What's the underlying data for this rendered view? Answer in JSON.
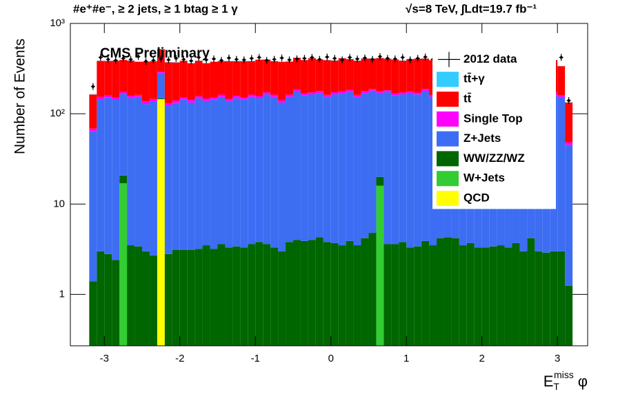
{
  "chart_data": {
    "type": "stacked_histogram",
    "title": "#e⁺#e⁻, ≥ 2 jets, ≥ 1 btag ≥ 1 γ",
    "subtitle": "√s=8 TeV,  ∫Ldt=19.7 fb⁻¹",
    "annotation": "CMS Preliminary",
    "y_label": "Number of Events",
    "x_label": {
      "base": "E",
      "sub": "T",
      "sup": "miss",
      "suffix": "φ"
    },
    "log_y": true,
    "xlim": [
      -3.45,
      3.4
    ],
    "ylim": [
      0.27,
      1000
    ],
    "xticks": [
      -3,
      -2,
      -1,
      0,
      1,
      2,
      3
    ],
    "yticks": [
      1,
      10,
      {
        "value": 100,
        "label": "10²"
      },
      {
        "value": 1000,
        "label": "10³"
      }
    ],
    "legend": "upper right",
    "bins": [
      -3.2,
      -3.1,
      -3.0,
      -2.9,
      -2.8,
      -2.7,
      -2.6,
      -2.5,
      -2.4,
      -2.3,
      -2.2,
      -2.1,
      -2.0,
      -1.9,
      -1.8,
      -1.7,
      -1.6,
      -1.5,
      -1.4,
      -1.3,
      -1.2,
      -1.1,
      -1.0,
      -0.9,
      -0.8,
      -0.7,
      -0.6,
      -0.5,
      -0.4,
      -0.3,
      -0.2,
      -0.1,
      0.0,
      0.1,
      0.2,
      0.3,
      0.4,
      0.5,
      0.6,
      0.7,
      0.8,
      0.9,
      1.0,
      1.1,
      1.2,
      1.3,
      1.4,
      1.5,
      1.6,
      1.7,
      1.8,
      1.9,
      2.0,
      2.1,
      2.2,
      2.3,
      2.4,
      2.5,
      2.6,
      2.7,
      2.8,
      2.9,
      3.0,
      3.1,
      3.2
    ],
    "data_series": {
      "name": "2012 data",
      "color": "#000000",
      "values": [
        200,
        420,
        400,
        390,
        410,
        400,
        430,
        380,
        390,
        405,
        395,
        410,
        400,
        385,
        420,
        395,
        405,
        390,
        415,
        400,
        395,
        410,
        420,
        390,
        400,
        415,
        395,
        405,
        410,
        420,
        400,
        425,
        410,
        395,
        420,
        405,
        415,
        400,
        430,
        410,
        405,
        420,
        395,
        410,
        425,
        400,
        415,
        405,
        410,
        400,
        420,
        395,
        415,
        405,
        400,
        420,
        410,
        395,
        405,
        400,
        410,
        400,
        420,
        140
      ]
    },
    "series": [
      {
        "name": "tt̄+γ",
        "color": "#33ccff",
        "values": [
          1,
          2,
          2,
          2,
          2,
          2,
          2,
          2,
          2,
          2,
          2,
          2,
          2,
          2,
          2,
          2,
          2,
          2,
          2,
          2,
          2,
          2,
          2,
          2,
          2,
          2,
          2,
          2,
          2,
          2,
          2,
          2,
          2,
          2,
          2,
          2,
          2,
          2,
          2,
          2,
          2,
          2,
          2,
          2,
          2,
          2,
          2,
          2,
          2,
          2,
          2,
          2,
          2,
          2,
          2,
          2,
          2,
          2,
          2,
          2,
          2,
          2,
          2,
          1
        ]
      },
      {
        "name": "tt̄",
        "color": "#ff0000",
        "values": [
          95,
          230,
          225,
          235,
          220,
          230,
          215,
          240,
          235,
          225,
          240,
          230,
          235,
          220,
          230,
          215,
          225,
          220,
          235,
          225,
          230,
          220,
          240,
          225,
          220,
          235,
          215,
          230,
          225,
          240,
          220,
          230,
          215,
          235,
          220,
          225,
          230,
          220,
          235,
          225,
          230,
          215,
          225,
          235,
          220,
          230,
          225,
          240,
          220,
          225,
          235,
          215,
          230,
          225,
          220,
          235,
          230,
          220,
          225,
          215,
          230,
          220,
          175,
          85
        ]
      },
      {
        "name": "Single Top",
        "color": "#ff00ff",
        "values": [
          4,
          9,
          8,
          9,
          8,
          9,
          8,
          9,
          8,
          9,
          8,
          9,
          8,
          9,
          8,
          9,
          8,
          9,
          8,
          9,
          8,
          9,
          8,
          9,
          9,
          8,
          9,
          8,
          9,
          8,
          9,
          8,
          9,
          8,
          9,
          8,
          9,
          8,
          9,
          8,
          9,
          8,
          9,
          8,
          9,
          8,
          9,
          8,
          8,
          9,
          8,
          9,
          8,
          9,
          8,
          9,
          8,
          9,
          8,
          9,
          8,
          9,
          8,
          3
        ]
      },
      {
        "name": "Z+Jets",
        "color": "#3d6df2",
        "values": [
          63,
          142,
          148,
          140,
          145,
          145,
          150,
          125,
          135,
          135,
          120,
          128,
          140,
          130,
          145,
          135,
          140,
          150,
          135,
          145,
          140,
          150,
          145,
          160,
          150,
          130,
          150,
          175,
          155,
          160,
          165,
          150,
          160,
          165,
          170,
          150,
          165,
          175,
          150,
          170,
          155,
          160,
          165,
          160,
          175,
          150,
          170,
          165,
          160,
          150,
          150,
          145,
          155,
          160,
          150,
          145,
          160,
          155,
          165,
          150,
          155,
          160,
          150,
          44
        ]
      },
      {
        "name": "WW/ZZ/WZ",
        "color": "#006600",
        "values": [
          1.4,
          3.0,
          2.8,
          2.4,
          3.7,
          3.5,
          3.4,
          3.0,
          2.7,
          3.2,
          2.8,
          3.1,
          3.1,
          3.1,
          3.2,
          3.5,
          3.2,
          3.6,
          3.3,
          3.4,
          3.3,
          3.6,
          3.8,
          3.6,
          3.3,
          3.0,
          3.8,
          4.0,
          3.9,
          4.0,
          4.3,
          3.8,
          3.7,
          3.5,
          3.9,
          3.5,
          4.2,
          4.8,
          4.0,
          3.6,
          3.6,
          3.8,
          3.3,
          3.4,
          3.9,
          3.5,
          4.2,
          4.3,
          4.2,
          3.5,
          3.7,
          3.3,
          3.3,
          3.4,
          3.5,
          3.3,
          3.7,
          3.0,
          4.2,
          3.0,
          2.9,
          3.0,
          3.0,
          1.25
        ]
      },
      {
        "name": "W+Jets",
        "color": "#33cc33",
        "values": [
          0,
          0,
          0,
          0,
          17,
          0,
          0,
          0,
          0,
          0,
          0,
          0,
          0,
          0,
          0,
          0,
          0,
          0,
          0,
          0,
          0,
          0,
          0,
          0,
          0,
          0,
          0,
          0,
          0,
          0,
          0,
          0,
          0,
          0,
          0,
          0,
          0,
          0,
          16,
          0,
          0,
          0,
          0,
          0,
          0,
          0,
          0,
          0,
          0,
          0,
          0,
          0,
          0,
          0,
          0,
          0,
          0,
          0,
          0,
          0,
          0,
          0,
          0,
          0
        ]
      },
      {
        "name": "QCD",
        "color": "#ffff00",
        "values": [
          0,
          0,
          0,
          0,
          0,
          0,
          0,
          0,
          0,
          145,
          0,
          0,
          0,
          0,
          0,
          0,
          0,
          0,
          0,
          0,
          0,
          0,
          0,
          0,
          0,
          0,
          0,
          0,
          0,
          0,
          0,
          0,
          0,
          0,
          0,
          0,
          0,
          0,
          0,
          0,
          0,
          0,
          0,
          0,
          0,
          0,
          0,
          0,
          0,
          0,
          0,
          0,
          0,
          0,
          0,
          0,
          0,
          0,
          0,
          0,
          0,
          0,
          0,
          0
        ]
      }
    ]
  }
}
